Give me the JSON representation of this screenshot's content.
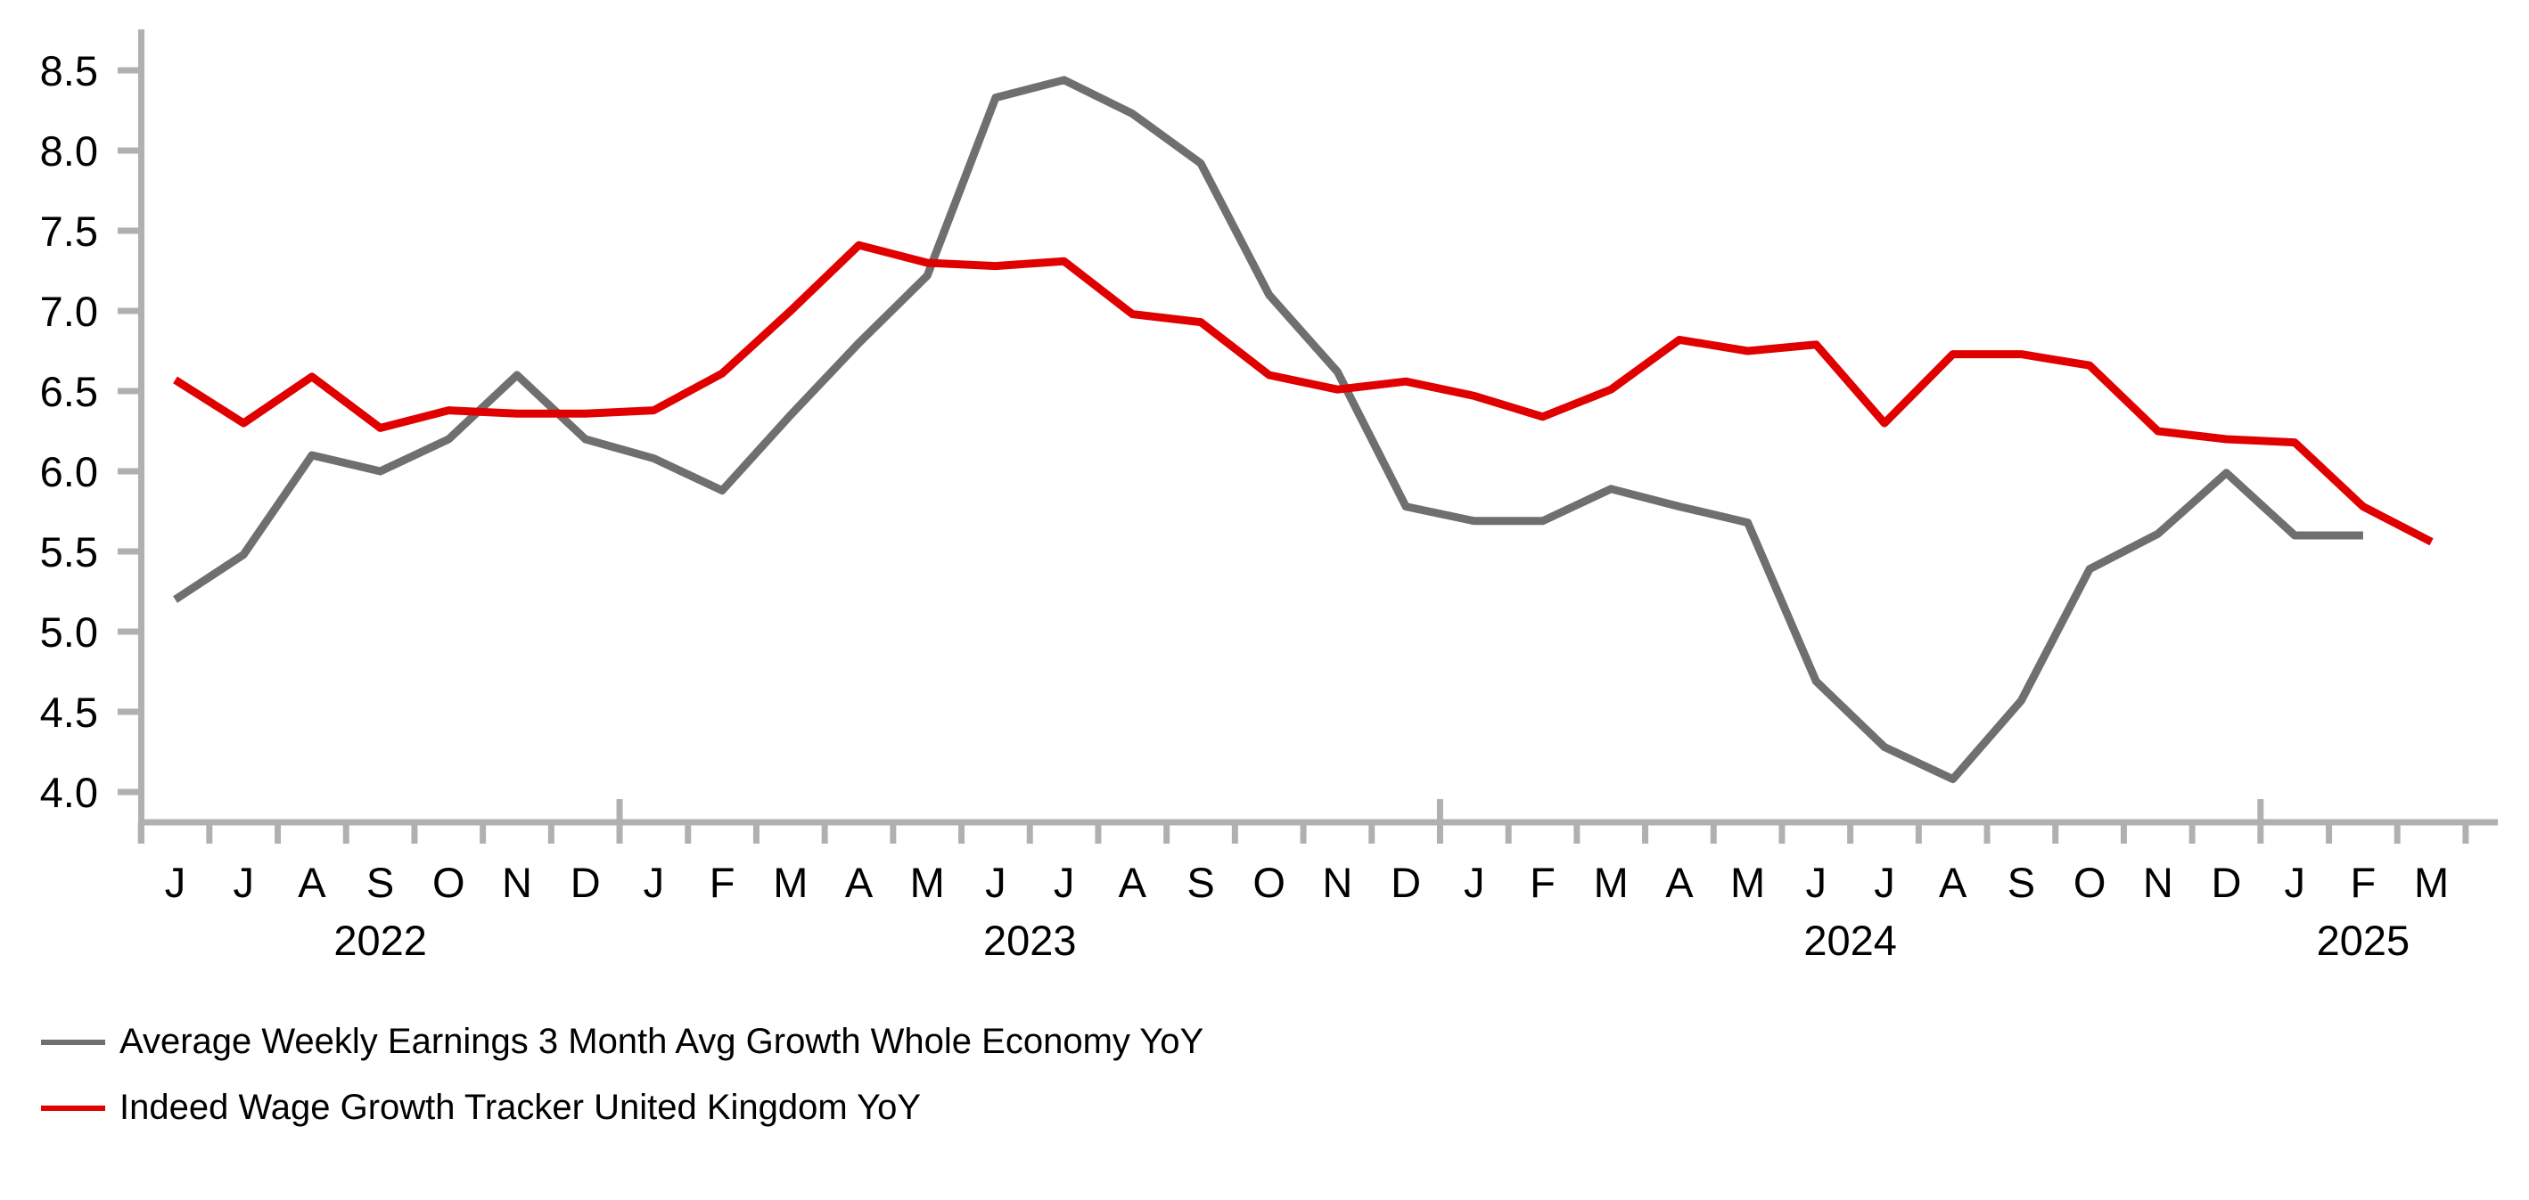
{
  "chart_data": {
    "type": "line",
    "title": "",
    "grid": false,
    "legend_position": "bottom-left",
    "axis_color": "#b0b0b0",
    "text_color": "#000000",
    "y_axis": {
      "min": 4.0,
      "max": 8.5,
      "step": 0.5,
      "ticks": [
        "8.5",
        "8.0",
        "7.5",
        "7.0",
        "6.5",
        "6.0",
        "5.5",
        "5.0",
        "4.5",
        "4.0"
      ]
    },
    "x_axis": {
      "month_labels": [
        "J",
        "J",
        "A",
        "S",
        "O",
        "N",
        "D",
        "J",
        "F",
        "M",
        "A",
        "M",
        "J",
        "J",
        "A",
        "S",
        "O",
        "N",
        "D",
        "J",
        "F",
        "M",
        "A",
        "M",
        "J",
        "J",
        "A",
        "S",
        "O",
        "N",
        "D",
        "J",
        "F",
        "M"
      ],
      "year_labels": [
        {
          "label": "2022",
          "anchor_month_index": 3.0
        },
        {
          "label": "2023",
          "anchor_month_index": 12.5
        },
        {
          "label": "2024",
          "anchor_month_index": 24.5
        },
        {
          "label": "2025",
          "anchor_month_index": 32.0
        }
      ]
    },
    "series": [
      {
        "name": "Average Weekly Earnings 3 Month Avg Growth Whole Economy YoY",
        "color": "#6f6f6f",
        "values": [
          5.2,
          5.48,
          6.1,
          6.0,
          6.2,
          6.6,
          6.2,
          6.08,
          5.88,
          6.35,
          6.8,
          7.22,
          8.33,
          8.44,
          8.23,
          7.92,
          7.1,
          6.62,
          5.78,
          5.69,
          5.69,
          5.89,
          5.78,
          5.68,
          4.69,
          4.28,
          4.08,
          4.57,
          5.39,
          5.61,
          5.99,
          5.6,
          5.6,
          null
        ]
      },
      {
        "name": "Indeed Wage Growth Tracker United Kingdom YoY",
        "color": "#e10000",
        "values": [
          6.57,
          6.3,
          6.59,
          6.27,
          6.38,
          6.36,
          6.36,
          6.38,
          6.61,
          7.0,
          7.41,
          7.3,
          7.28,
          7.31,
          6.98,
          6.93,
          6.6,
          6.51,
          6.56,
          6.47,
          6.34,
          6.51,
          6.82,
          6.75,
          6.79,
          6.3,
          6.73,
          6.73,
          6.66,
          6.25,
          6.2,
          6.18,
          5.78,
          5.56
        ]
      }
    ]
  }
}
